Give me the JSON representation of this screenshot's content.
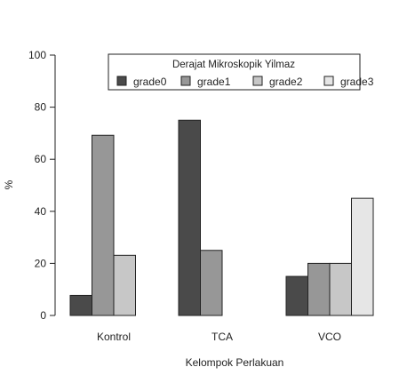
{
  "chart_data": {
    "type": "bar",
    "title": "",
    "xlabel": "Kelompok Perlakuan",
    "ylabel": "%",
    "ylim": [
      0,
      100
    ],
    "yticks": [
      0,
      20,
      40,
      60,
      80,
      100
    ],
    "grid": false,
    "categories": [
      "Kontrol",
      "TCA",
      "VCO"
    ],
    "legend": {
      "title": "Derajat Mikroskopik Yilmaz",
      "position": "top-right",
      "orientation": "horizontal"
    },
    "series": [
      {
        "name": "grade0",
        "color": "#4a4a4a",
        "values": [
          7.7,
          75,
          15
        ]
      },
      {
        "name": "grade1",
        "color": "#979797",
        "values": [
          69.2,
          25,
          20
        ]
      },
      {
        "name": "grade2",
        "color": "#c7c7c7",
        "values": [
          23.1,
          0,
          20
        ]
      },
      {
        "name": "grade3",
        "color": "#e6e6e6",
        "values": [
          0,
          0,
          45
        ]
      }
    ]
  }
}
